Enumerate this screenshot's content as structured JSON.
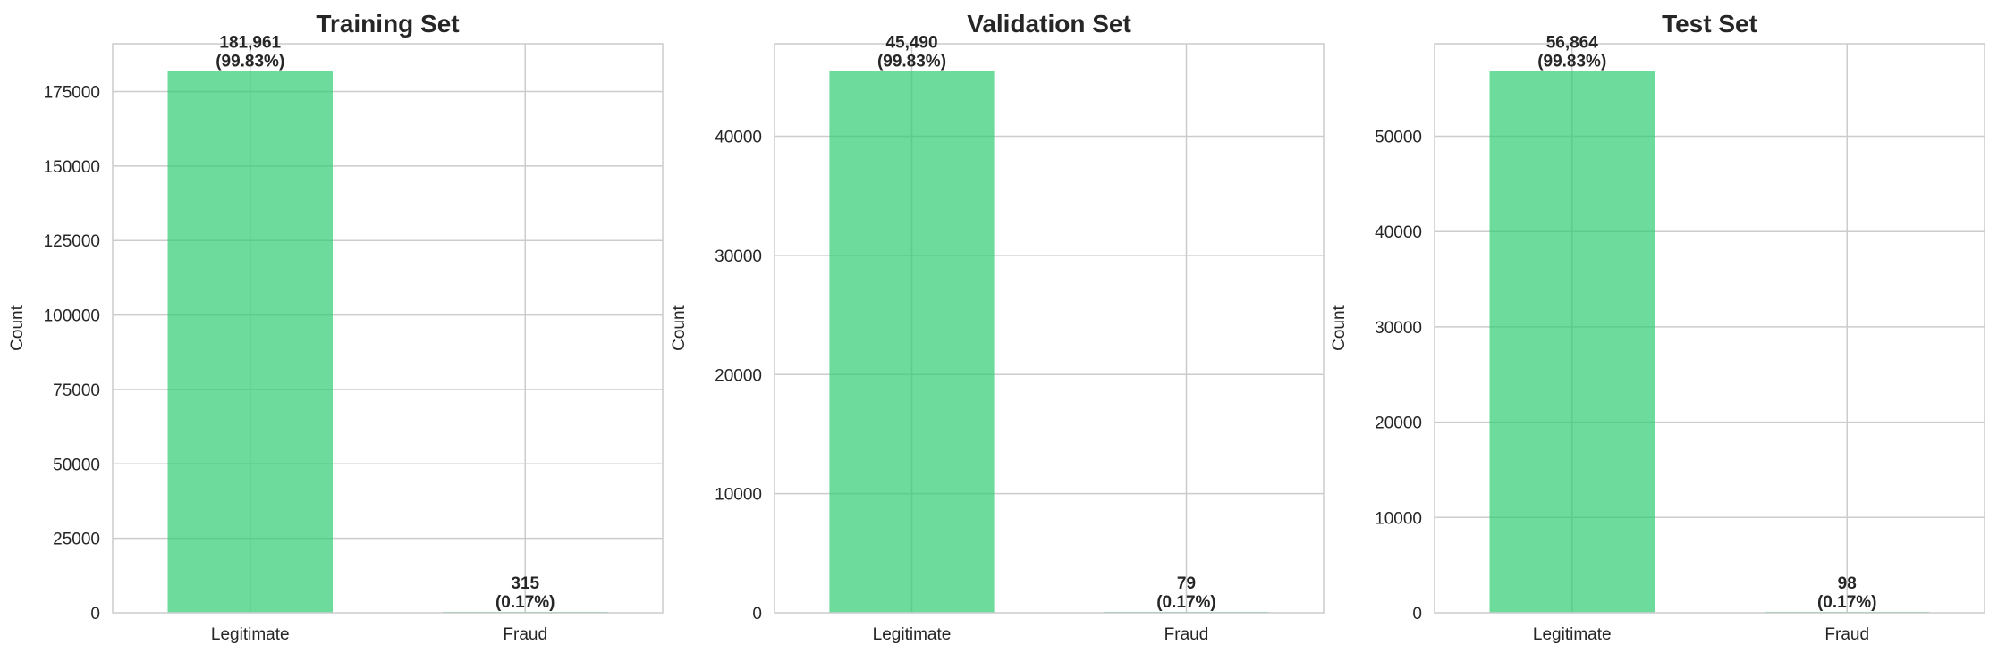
{
  "chart_data": [
    {
      "type": "bar",
      "title": "Training Set",
      "ylabel": "Count",
      "categories": [
        "Legitimate",
        "Fraud"
      ],
      "values": [
        181961,
        315
      ],
      "ylim": [
        0,
        191059
      ],
      "yticks": [
        0,
        25000,
        50000,
        75000,
        100000,
        125000,
        150000,
        175000
      ],
      "bar_labels": [
        {
          "count": "181,961",
          "pct": "(99.83%)"
        },
        {
          "count": "315",
          "pct": "(0.17%)"
        }
      ],
      "grid": true,
      "bar_color": "#2ecc71"
    },
    {
      "type": "bar",
      "title": "Validation Set",
      "ylabel": "Count",
      "categories": [
        "Legitimate",
        "Fraud"
      ],
      "values": [
        45490,
        79
      ],
      "ylim": [
        0,
        47765
      ],
      "yticks": [
        0,
        10000,
        20000,
        30000,
        40000
      ],
      "bar_labels": [
        {
          "count": "45,490",
          "pct": "(99.83%)"
        },
        {
          "count": "79",
          "pct": "(0.17%)"
        }
      ],
      "grid": true,
      "bar_color": "#2ecc71"
    },
    {
      "type": "bar",
      "title": "Test Set",
      "ylabel": "Count",
      "categories": [
        "Legitimate",
        "Fraud"
      ],
      "values": [
        56864,
        98
      ],
      "ylim": [
        0,
        59707
      ],
      "yticks": [
        0,
        10000,
        20000,
        30000,
        40000,
        50000
      ],
      "bar_labels": [
        {
          "count": "56,864",
          "pct": "(99.83%)"
        },
        {
          "count": "98",
          "pct": "(0.17%)"
        }
      ],
      "grid": true,
      "bar_color": "#2ecc71"
    }
  ]
}
